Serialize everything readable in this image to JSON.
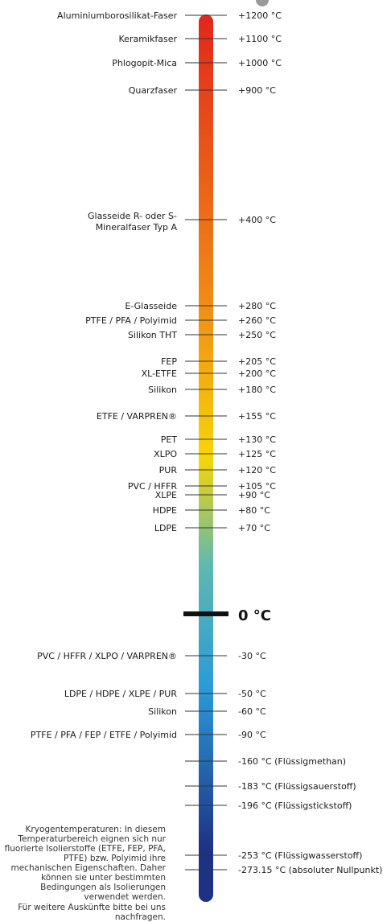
{
  "scale": {
    "zero_label": "0 °C",
    "rows": [
      {
        "t": 1200,
        "left": "Aluminiumborosilikat-Faser",
        "right": "+1200 °C"
      },
      {
        "t": 1100,
        "left": "Keramikfaser",
        "right": "+1100 °C"
      },
      {
        "t": 1000,
        "left": "Phlogopit-Mica",
        "right": "+1000 °C"
      },
      {
        "t": 900,
        "left": "Quarzfaser",
        "right": "+900 °C"
      },
      {
        "t": 400,
        "left": [
          "Glasseide R- oder S-",
          "Mineralfaser Typ A"
        ],
        "right": "+400 °C"
      },
      {
        "t": 280,
        "left": "E-Glasseide",
        "right": "+280 °C"
      },
      {
        "t": 260,
        "left": "PTFE / PFA / Polyimid",
        "right": "+260 °C"
      },
      {
        "t": 250,
        "left": "Silikon THT",
        "right": "+250 °C"
      },
      {
        "t": 205,
        "left": "FEP",
        "right": "+205 °C"
      },
      {
        "t": 200,
        "left": "XL-ETFE",
        "right": "+200 °C"
      },
      {
        "t": 180,
        "left": "Silikon",
        "right": "+180 °C"
      },
      {
        "t": 155,
        "left": "ETFE / VARPREN®",
        "right": "+155 °C"
      },
      {
        "t": 130,
        "left": "PET",
        "right": "+130 °C"
      },
      {
        "t": 125,
        "left": "XLPO",
        "right": "+125 °C"
      },
      {
        "t": 120,
        "left": "PUR",
        "right": "+120 °C"
      },
      {
        "t": 105,
        "left": "PVC / HFFR",
        "right": "+105 °C"
      },
      {
        "t": 90,
        "left": "XLPE",
        "right": "+90 °C"
      },
      {
        "t": 80,
        "left": "HDPE",
        "right": "+80 °C"
      },
      {
        "t": 70,
        "left": "LDPE",
        "right": "+70 °C"
      },
      {
        "t": -30,
        "left": "PVC / HFFR / XLPO / VARPREN®",
        "right": "-30 °C"
      },
      {
        "t": -50,
        "left": "LDPE / HDPE / XLPE / PUR",
        "right": "-50 °C"
      },
      {
        "t": -60,
        "left": "Silikon",
        "right": "-60 °C"
      },
      {
        "t": -90,
        "left": "PTFE / PFA / FEP / ETFE / Polyimid",
        "right": "-90 °C"
      },
      {
        "t": -160,
        "left": "",
        "right": "-160 °C (Flüssigmethan)"
      },
      {
        "t": -183,
        "left": "",
        "right": "-183 °C (Flüssigsauerstoff)"
      },
      {
        "t": -196,
        "left": "",
        "right": "-196 °C (Flüssigstickstoff)"
      },
      {
        "t": -253,
        "left": "",
        "right": "-253 °C (Flüssigwasserstoff)"
      },
      {
        "t": -273.15,
        "left": "",
        "right": "-273.15 °C (absoluter Nullpunkt)"
      }
    ]
  },
  "notes": {
    "cryo": "Kryogentemperaturen: In diesem Temperaturbereich eignen sich nur fluorierte Isolierstoffe (ETFE, FEP, PFA, PTFE) bzw. Polyimid ihre mechanischen Eigenschaften. Daher können sie unter bestimmten Bedingungen als Isolierungen verwendet werden.",
    "contact": "Für weitere Auskünfte bitte bei uns nachfragen."
  },
  "colors": {
    "hot": "#e3261b",
    "orange": "#f08a16",
    "yellow": "#f6d508",
    "teal": "#5fb9b0",
    "light_blue": "#2a9ad8",
    "dark_blue": "#1e3285",
    "line": "#333333"
  }
}
